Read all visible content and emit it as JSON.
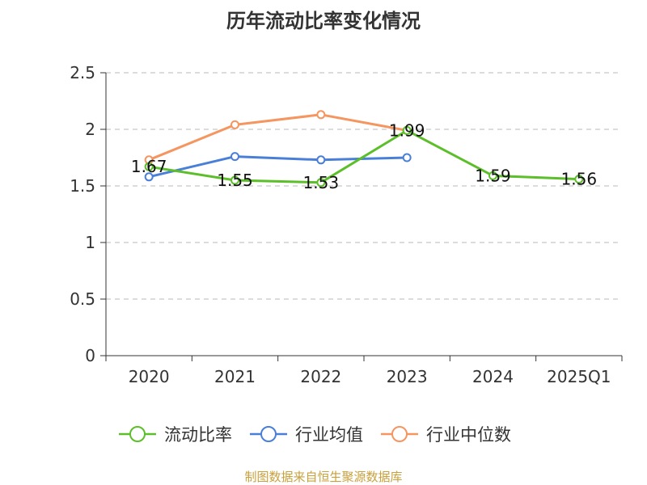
{
  "chart_data": {
    "type": "line",
    "title": "历年流动比率变化情况",
    "categories": [
      "2020",
      "2021",
      "2022",
      "2023",
      "2024",
      "2025Q1"
    ],
    "ylim": [
      0,
      2.5
    ],
    "yticks": [
      "0",
      "0.5",
      "1",
      "1.5",
      "2",
      "2.5"
    ],
    "grid": true,
    "legend_position": "bottom",
    "series": [
      {
        "name": "流动比率",
        "color": "#5cbf2a",
        "values": [
          1.67,
          1.55,
          1.53,
          1.99,
          1.59,
          1.56
        ],
        "labels": [
          "1.67",
          "1.55",
          "1.53",
          "1.99",
          "1.59",
          "1.56"
        ]
      },
      {
        "name": "行业均值",
        "color": "#4a7fd8",
        "values": [
          1.58,
          1.76,
          1.73,
          1.75,
          null,
          null
        ]
      },
      {
        "name": "行业中位数",
        "color": "#f59560",
        "values": [
          1.73,
          2.04,
          2.13,
          1.99,
          null,
          null
        ]
      }
    ]
  },
  "footer": "制图数据来自恒生聚源数据库"
}
